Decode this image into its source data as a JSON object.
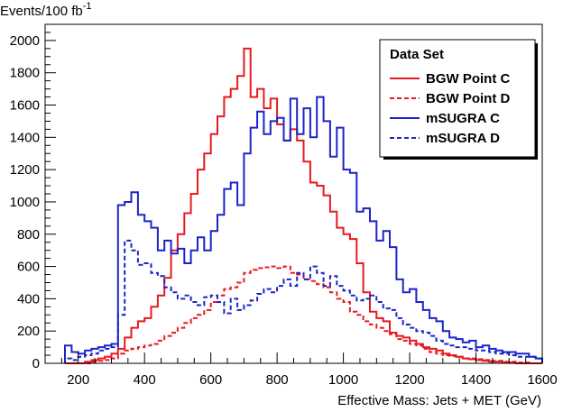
{
  "chart_data": {
    "type": "line",
    "style": "step-histogram",
    "title": "",
    "ylabel": "Events/100 fb",
    "ylabel_superscript": "-1",
    "xlabel": "Effective Mass: Jets + MET (GeV)",
    "xlim": [
      100,
      1600
    ],
    "ylim": [
      0,
      2100
    ],
    "bin_width": 20,
    "x_ticks": [
      200,
      400,
      600,
      800,
      1000,
      1200,
      1400,
      1600
    ],
    "y_ticks": [
      0,
      200,
      400,
      600,
      800,
      1000,
      1200,
      1400,
      1600,
      1800,
      2000
    ],
    "x_tick_labels": [
      "200",
      "400",
      "600",
      "800",
      "1000",
      "1200",
      "1400",
      "1600"
    ],
    "y_tick_labels": [
      "0",
      "200",
      "400",
      "600",
      "800",
      "1000",
      "1200",
      "1400",
      "1600",
      "1800",
      "2000"
    ],
    "legend": {
      "title": "Data Set",
      "position": "top-right"
    },
    "series": [
      {
        "name": "BGW Point C",
        "color": "#e8191f",
        "dashed": false,
        "edges": [
          160,
          180,
          200,
          220,
          240,
          260,
          280,
          300,
          320,
          340,
          360,
          380,
          400,
          420,
          440,
          460,
          480,
          500,
          520,
          540,
          560,
          580,
          600,
          620,
          640,
          660,
          680,
          700,
          720,
          740,
          760,
          780,
          800,
          820,
          840,
          860,
          880,
          900,
          920,
          940,
          960,
          980,
          1000,
          1020,
          1040,
          1060,
          1080,
          1100,
          1120,
          1140,
          1160,
          1180,
          1200,
          1220,
          1240,
          1260,
          1280,
          1300,
          1320,
          1340,
          1360,
          1380,
          1400,
          1420,
          1440,
          1460,
          1480,
          1500,
          1520,
          1540,
          1560,
          1580,
          1600
        ],
        "values": [
          0,
          0,
          0,
          10,
          20,
          30,
          40,
          60,
          90,
          160,
          220,
          260,
          280,
          350,
          420,
          530,
          700,
          800,
          930,
          1050,
          1200,
          1300,
          1420,
          1530,
          1650,
          1700,
          1780,
          1950,
          1650,
          1700,
          1580,
          1640,
          1480,
          1380,
          1450,
          1380,
          1250,
          1120,
          1100,
          1040,
          940,
          840,
          800,
          770,
          620,
          440,
          320,
          280,
          260,
          190,
          170,
          160,
          140,
          120,
          100,
          90,
          80,
          60,
          50,
          40,
          30,
          25,
          20,
          15,
          10,
          10,
          5,
          5,
          0,
          0,
          0,
          0
        ]
      },
      {
        "name": "BGW Point D",
        "color": "#e8191f",
        "dashed": true,
        "edges": [
          160,
          180,
          200,
          220,
          240,
          260,
          280,
          300,
          320,
          340,
          360,
          380,
          400,
          420,
          440,
          460,
          480,
          500,
          520,
          540,
          560,
          580,
          600,
          620,
          640,
          660,
          680,
          700,
          720,
          740,
          760,
          780,
          800,
          820,
          840,
          860,
          880,
          900,
          920,
          940,
          960,
          980,
          1000,
          1020,
          1040,
          1060,
          1080,
          1100,
          1120,
          1140,
          1160,
          1180,
          1200,
          1220,
          1240,
          1260,
          1280,
          1300,
          1320,
          1340,
          1360,
          1380,
          1400,
          1420,
          1440,
          1460,
          1480,
          1500,
          1520,
          1540,
          1560,
          1580,
          1600
        ],
        "values": [
          0,
          0,
          0,
          0,
          10,
          15,
          20,
          30,
          60,
          80,
          90,
          100,
          110,
          120,
          140,
          170,
          190,
          220,
          250,
          280,
          300,
          330,
          380,
          420,
          460,
          470,
          500,
          560,
          580,
          590,
          595,
          600,
          590,
          600,
          560,
          550,
          520,
          510,
          490,
          470,
          440,
          400,
          380,
          320,
          300,
          260,
          240,
          220,
          200,
          180,
          150,
          140,
          120,
          110,
          90,
          70,
          60,
          50,
          45,
          40,
          30,
          30,
          25,
          20,
          15,
          15,
          10,
          10,
          5,
          5,
          0,
          0
        ]
      },
      {
        "name": "mSUGRA C",
        "color": "#1a24c8",
        "dashed": false,
        "edges": [
          160,
          180,
          200,
          220,
          240,
          260,
          280,
          300,
          320,
          340,
          360,
          380,
          400,
          420,
          440,
          460,
          480,
          500,
          520,
          540,
          560,
          580,
          600,
          620,
          640,
          660,
          680,
          700,
          720,
          740,
          760,
          780,
          800,
          820,
          840,
          860,
          880,
          900,
          920,
          940,
          960,
          980,
          1000,
          1020,
          1040,
          1060,
          1080,
          1100,
          1120,
          1140,
          1160,
          1180,
          1200,
          1220,
          1240,
          1260,
          1280,
          1300,
          1320,
          1340,
          1360,
          1380,
          1400,
          1420,
          1440,
          1460,
          1480,
          1500,
          1520,
          1540,
          1560,
          1580,
          1600
        ],
        "values": [
          110,
          70,
          60,
          80,
          90,
          100,
          110,
          120,
          980,
          1000,
          1060,
          920,
          880,
          840,
          700,
          760,
          680,
          710,
          620,
          700,
          780,
          700,
          820,
          920,
          1080,
          1120,
          980,
          1300,
          1460,
          1560,
          1420,
          1500,
          1520,
          1380,
          1640,
          1420,
          1580,
          1400,
          1650,
          1500,
          1280,
          1460,
          1200,
          1180,
          940,
          960,
          880,
          760,
          820,
          720,
          520,
          440,
          460,
          380,
          330,
          280,
          260,
          200,
          160,
          150,
          130,
          140,
          100,
          110,
          90,
          80,
          70,
          70,
          60,
          60,
          40,
          30
        ]
      },
      {
        "name": "mSUGRA D",
        "color": "#1a24c8",
        "dashed": true,
        "edges": [
          160,
          180,
          200,
          220,
          240,
          260,
          280,
          300,
          320,
          340,
          360,
          380,
          400,
          420,
          440,
          460,
          480,
          500,
          520,
          540,
          560,
          580,
          600,
          620,
          640,
          660,
          680,
          700,
          720,
          740,
          760,
          780,
          800,
          820,
          840,
          860,
          880,
          900,
          920,
          940,
          960,
          980,
          1000,
          1020,
          1040,
          1060,
          1080,
          1100,
          1120,
          1140,
          1160,
          1180,
          1200,
          1220,
          1240,
          1260,
          1280,
          1300,
          1320,
          1340,
          1360,
          1380,
          1400,
          1420,
          1440,
          1460,
          1480,
          1500,
          1520,
          1540,
          1560,
          1580,
          1600
        ],
        "values": [
          30,
          20,
          40,
          50,
          60,
          80,
          90,
          100,
          300,
          760,
          700,
          610,
          620,
          560,
          540,
          470,
          440,
          400,
          420,
          380,
          360,
          410,
          420,
          380,
          310,
          400,
          330,
          360,
          390,
          430,
          460,
          440,
          480,
          520,
          480,
          560,
          520,
          600,
          560,
          480,
          540,
          480,
          450,
          420,
          390,
          400,
          420,
          380,
          340,
          330,
          280,
          240,
          220,
          200,
          190,
          170,
          140,
          120,
          110,
          100,
          100,
          90,
          80,
          80,
          70,
          60,
          60,
          50,
          40,
          40,
          40,
          30
        ]
      }
    ]
  }
}
